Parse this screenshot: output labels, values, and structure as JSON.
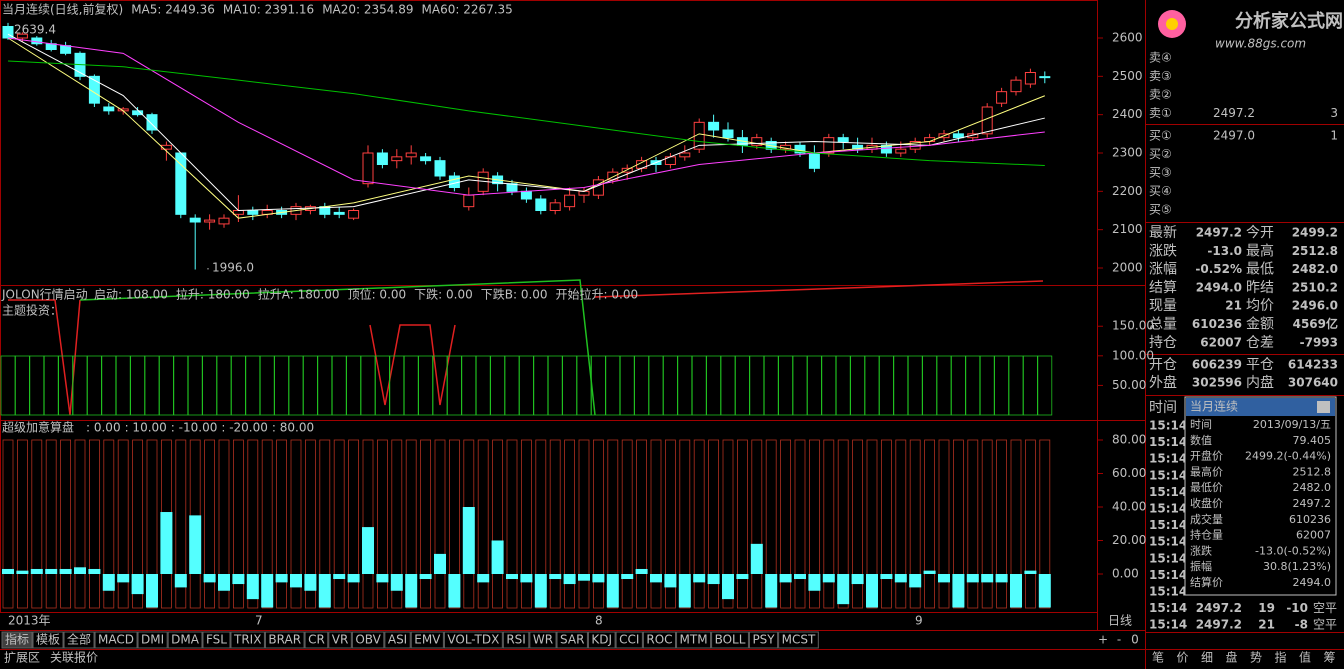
{
  "header": {
    "title": "当月连续(日线,前复权)",
    "ma5": "MA5: 2449.36",
    "ma10": "MA10: 2391.16",
    "ma20": "MA20: 2354.89",
    "ma60": "MA60: 2267.35"
  },
  "main_chart": {
    "ylim": [
      1950,
      2685
    ],
    "yticks": [
      2000,
      2100,
      2200,
      2300,
      2400,
      2500,
      2600
    ],
    "high_label": "2639.4",
    "low_label": "1996.0",
    "candles": [
      [
        2630,
        2600,
        2639.4,
        2595
      ],
      [
        2600,
        2610,
        2615,
        2590
      ],
      [
        2600,
        2585,
        2605,
        2580
      ],
      [
        2585,
        2570,
        2595,
        2565
      ],
      [
        2580,
        2560,
        2590,
        2555
      ],
      [
        2560,
        2500,
        2565,
        2490
      ],
      [
        2500,
        2430,
        2505,
        2420
      ],
      [
        2420,
        2410,
        2430,
        2400
      ],
      [
        2410,
        2415,
        2420,
        2400
      ],
      [
        2410,
        2400,
        2420,
        2395
      ],
      [
        2400,
        2360,
        2405,
        2350
      ],
      [
        2310,
        2320,
        2330,
        2280
      ],
      [
        2300,
        2140,
        2300,
        2130
      ],
      [
        2130,
        2120,
        2140,
        1996
      ],
      [
        2120,
        2125,
        2140,
        2100
      ],
      [
        2115,
        2130,
        2140,
        2105
      ],
      [
        2140,
        2150,
        2190,
        2120
      ],
      [
        2150,
        2140,
        2160,
        2125
      ],
      [
        2140,
        2150,
        2165,
        2130
      ],
      [
        2150,
        2140,
        2160,
        2130
      ],
      [
        2140,
        2160,
        2170,
        2125
      ],
      [
        2150,
        2160,
        2165,
        2140
      ],
      [
        2160,
        2140,
        2170,
        2130
      ],
      [
        2145,
        2140,
        2160,
        2130
      ],
      [
        2130,
        2150,
        2155,
        2125
      ],
      [
        2220,
        2300,
        2320,
        2210
      ],
      [
        2300,
        2270,
        2310,
        2260
      ],
      [
        2280,
        2290,
        2310,
        2260
      ],
      [
        2290,
        2300,
        2320,
        2270
      ],
      [
        2290,
        2280,
        2300,
        2270
      ],
      [
        2280,
        2240,
        2290,
        2230
      ],
      [
        2240,
        2210,
        2250,
        2200
      ],
      [
        2160,
        2190,
        2210,
        2150
      ],
      [
        2200,
        2250,
        2260,
        2190
      ],
      [
        2240,
        2220,
        2250,
        2200
      ],
      [
        2220,
        2200,
        2230,
        2190
      ],
      [
        2200,
        2180,
        2210,
        2170
      ],
      [
        2180,
        2150,
        2190,
        2140
      ],
      [
        2150,
        2170,
        2180,
        2140
      ],
      [
        2160,
        2190,
        2210,
        2150
      ],
      [
        2190,
        2200,
        2210,
        2170
      ],
      [
        2190,
        2230,
        2240,
        2180
      ],
      [
        2230,
        2250,
        2260,
        2220
      ],
      [
        2250,
        2260,
        2270,
        2230
      ],
      [
        2260,
        2280,
        2290,
        2250
      ],
      [
        2280,
        2270,
        2290,
        2250
      ],
      [
        2270,
        2290,
        2300,
        2260
      ],
      [
        2290,
        2300,
        2320,
        2280
      ],
      [
        2310,
        2380,
        2390,
        2300
      ],
      [
        2380,
        2360,
        2400,
        2340
      ],
      [
        2360,
        2340,
        2380,
        2330
      ],
      [
        2340,
        2320,
        2360,
        2300
      ],
      [
        2320,
        2340,
        2350,
        2310
      ],
      [
        2330,
        2310,
        2340,
        2300
      ],
      [
        2310,
        2320,
        2330,
        2300
      ],
      [
        2320,
        2300,
        2330,
        2290
      ],
      [
        2300,
        2260,
        2320,
        2250
      ],
      [
        2300,
        2340,
        2350,
        2290
      ],
      [
        2340,
        2330,
        2350,
        2310
      ],
      [
        2320,
        2310,
        2340,
        2300
      ],
      [
        2310,
        2320,
        2340,
        2300
      ],
      [
        2320,
        2300,
        2330,
        2290
      ],
      [
        2300,
        2310,
        2330,
        2290
      ],
      [
        2310,
        2330,
        2340,
        2300
      ],
      [
        2330,
        2340,
        2350,
        2320
      ],
      [
        2340,
        2350,
        2360,
        2330
      ],
      [
        2350,
        2340,
        2360,
        2330
      ],
      [
        2340,
        2350,
        2360,
        2330
      ],
      [
        2350,
        2420,
        2430,
        2340
      ],
      [
        2430,
        2460,
        2470,
        2420
      ],
      [
        2460,
        2490,
        2500,
        2450
      ],
      [
        2480,
        2510,
        2520,
        2470
      ],
      [
        2499.2,
        2497.2,
        2512.8,
        2482.0
      ]
    ],
    "ma": {
      "x": [
        0,
        8,
        16,
        24,
        32,
        40,
        48,
        56,
        64,
        72
      ],
      "series": [
        {
          "name": "MA5",
          "color": "#ffff80",
          "values": [
            2600,
            2410,
            2130,
            2170,
            2240,
            2200,
            2350,
            2300,
            2330,
            2449.36
          ]
        },
        {
          "name": "MA10",
          "color": "#ffffff",
          "values": [
            2610,
            2450,
            2150,
            2160,
            2230,
            2200,
            2320,
            2330,
            2320,
            2391.16
          ]
        },
        {
          "name": "MA20",
          "color": "#ff40ff",
          "values": [
            2600,
            2560,
            2380,
            2230,
            2190,
            2210,
            2270,
            2300,
            2320,
            2354.89
          ]
        },
        {
          "name": "MA60",
          "color": "#00c000",
          "values": [
            2540,
            2525,
            2490,
            2455,
            2410,
            2370,
            2330,
            2300,
            2280,
            2267.35
          ]
        }
      ]
    }
  },
  "indicator_panel": {
    "name": "JOLON行情启动",
    "items": [
      "启动: 108.00",
      "拉升: 180.00",
      "拉升A: 180.00",
      "顶位: 0.00",
      "下跌: 0.00",
      "下跌B: 0.00",
      "开始拉升: 0.00"
    ],
    "note": "主题投资：",
    "ylim": [
      0,
      218
    ],
    "yticks": [
      {
        "value": 50,
        "label": "50.00"
      },
      {
        "value": 100,
        "label": "100.00"
      },
      {
        "value": 150,
        "label": "150.00"
      }
    ]
  },
  "oscillator_panel": {
    "name": "超级加意算盘",
    "items": [
      ": 0.00",
      ": 10.00",
      ": -10.00",
      ": -20.00",
      ": 80.00"
    ],
    "ylim": [
      -22,
      88
    ],
    "yticks": [
      {
        "value": 0,
        "label": "0.00"
      },
      {
        "value": 20,
        "label": "20.00"
      },
      {
        "value": 40,
        "label": "40.00"
      },
      {
        "value": 60,
        "label": "60.00"
      },
      {
        "value": 80,
        "label": "80.00"
      }
    ],
    "values": [
      3,
      2,
      3,
      3,
      3,
      4,
      3,
      -10,
      -5,
      -12,
      -20,
      37,
      -8,
      35,
      -5,
      -10,
      -6,
      -15,
      -20,
      -5,
      -8,
      -10,
      -20,
      -3,
      -5,
      28,
      -5,
      -10,
      -20,
      -3,
      12,
      -20,
      40,
      -5,
      20,
      -3,
      -5,
      -20,
      -3,
      -6,
      -4,
      -5,
      -20,
      -3,
      3,
      -5,
      -8,
      -20,
      -5,
      -6,
      -15,
      -3,
      18,
      -20,
      -5,
      -3,
      -10,
      -5,
      -18,
      -6,
      -20,
      -3,
      -5,
      -8,
      2,
      -5,
      -20,
      -5,
      -5,
      -5,
      -20,
      2,
      -20
    ]
  },
  "x_axis": {
    "labels": [
      "2013年",
      "7",
      "8",
      "9"
    ],
    "period": "日线"
  },
  "tabs": [
    "指标",
    "模板",
    "全部",
    "MACD",
    "DMI",
    "DMA",
    "FSL",
    "TRIX",
    "BRAR",
    "CR",
    "VR",
    "OBV",
    "ASI",
    "EMV",
    "VOL-TDX",
    "RSI",
    "WR",
    "SAR",
    "KDJ",
    "CCI",
    "ROC",
    "MTM",
    "BOLL",
    "PSY",
    "MCST"
  ],
  "zoom": [
    "+",
    "-",
    "0"
  ],
  "bottom_tabs": [
    "扩展区",
    "关联报价"
  ],
  "logo": {
    "title": "分析家公式网",
    "url": "www.88gs.com"
  },
  "right_panel": {
    "sell": [
      [
        "卖④",
        "",
        ""
      ],
      [
        "卖③",
        "",
        ""
      ],
      [
        "卖②",
        "",
        ""
      ],
      [
        "卖①",
        "2497.2",
        "3"
      ]
    ],
    "buy": [
      [
        "买①",
        "2497.0",
        "1"
      ],
      [
        "买②",
        "",
        ""
      ],
      [
        "买③",
        "",
        ""
      ],
      [
        "买④",
        "",
        ""
      ],
      [
        "买⑤",
        "",
        ""
      ]
    ],
    "stats": [
      [
        "最新",
        "2497.2",
        "今开",
        "2499.2"
      ],
      [
        "涨跌",
        "-13.0",
        "最高",
        "2512.8"
      ],
      [
        "涨幅",
        "-0.52%",
        "最低",
        "2482.0"
      ],
      [
        "结算",
        "2494.0",
        "昨结",
        "2510.2"
      ],
      [
        "现量",
        "21",
        "均价",
        "2496.0"
      ],
      [
        "总量",
        "610236",
        "金额",
        "4569亿"
      ],
      [
        "持仓",
        "62007",
        "仓差",
        "-7993"
      ]
    ],
    "positions": [
      [
        "开仓",
        "606239",
        "平仓",
        "614233"
      ],
      [
        "外盘",
        "302596",
        "内盘",
        "307640"
      ]
    ],
    "time_header": "时间",
    "ticks": [
      [
        "15:14"
      ],
      [
        "15:14"
      ],
      [
        "15:14"
      ],
      [
        "15:14"
      ],
      [
        "15:14"
      ],
      [
        "15:14"
      ],
      [
        "15:14"
      ],
      [
        "15:14"
      ],
      [
        "15:14"
      ],
      [
        "15:14"
      ],
      [
        "15:14"
      ],
      [
        "15:14",
        "2497.2",
        "19",
        "-10",
        "空平"
      ],
      [
        "15:14",
        "2497.2",
        "21",
        "-8",
        "空平"
      ]
    ],
    "buttons": [
      "笔",
      "价",
      "细",
      "盘",
      "势",
      "指",
      "值",
      "筹"
    ]
  },
  "popup": {
    "title": "当月连续",
    "rows": [
      [
        "时间",
        "2013/09/13/五"
      ],
      [
        "数值",
        "79.405"
      ],
      [
        "开盘价",
        "2499.2(-0.44%)"
      ],
      [
        "最高价",
        "2512.8"
      ],
      [
        "最低价",
        "2482.0"
      ],
      [
        "收盘价",
        "2497.2"
      ],
      [
        "成交量",
        "610236"
      ],
      [
        "持仓量",
        "62007"
      ],
      [
        "涨跌",
        "-13.0(-0.52%)"
      ],
      [
        "振幅",
        "30.8(1.23%)"
      ],
      [
        "结算价",
        "2494.0"
      ]
    ]
  }
}
